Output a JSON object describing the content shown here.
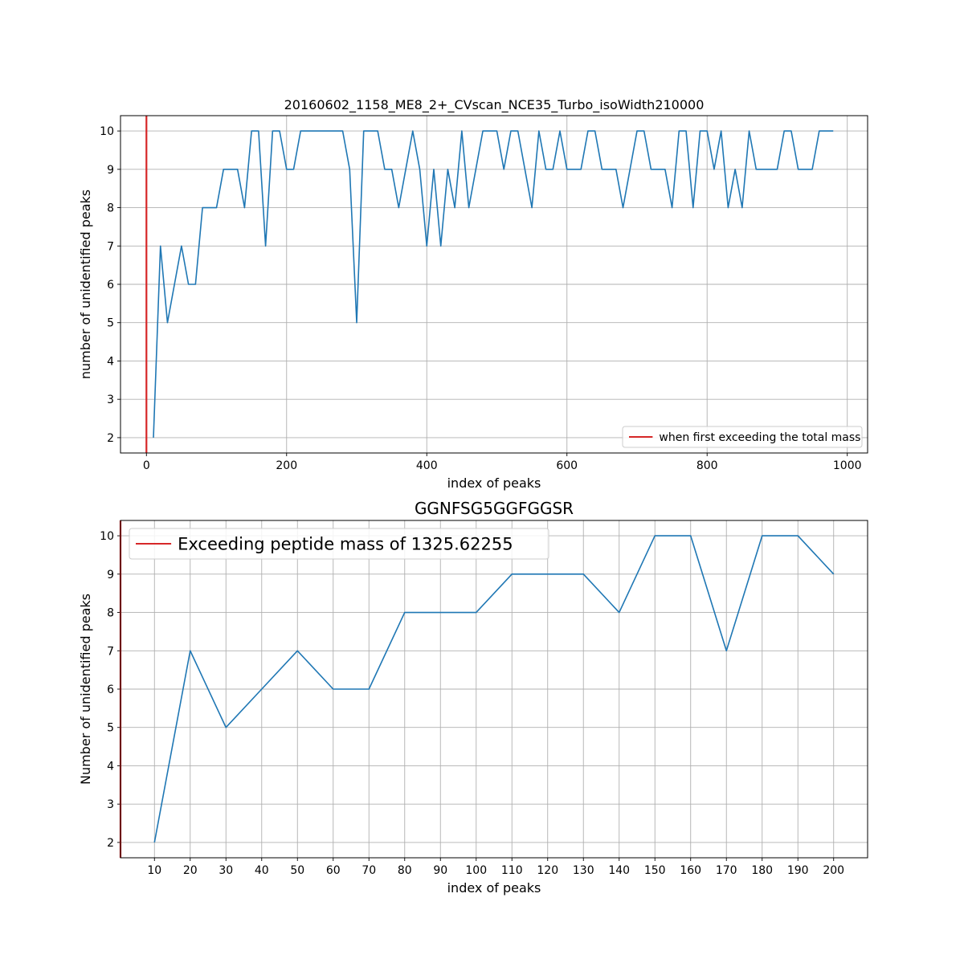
{
  "chart_data": [
    {
      "type": "line",
      "title": "20160602_1158_ME8_2+_CVscan_NCE35_Turbo_isoWidth210000",
      "xlabel": "index of peaks",
      "ylabel": "number of unidentified peaks",
      "xlim": [
        -37,
        1029
      ],
      "ylim": [
        1.6,
        10.4
      ],
      "xticks": [
        0,
        200,
        400,
        600,
        800,
        1000
      ],
      "yticks": [
        2,
        3,
        4,
        5,
        6,
        7,
        8,
        9,
        10
      ],
      "grid": true,
      "legend": {
        "location": "lower right",
        "entries": [
          "when first exceeding the total mass"
        ]
      },
      "vline": {
        "x": 0,
        "color": "#d62728",
        "label": "when first exceeding the total mass"
      },
      "series": [
        {
          "color": "#1f77b4",
          "x": [
            10,
            20,
            30,
            40,
            50,
            60,
            70,
            80,
            90,
            100,
            110,
            120,
            130,
            140,
            150,
            160,
            170,
            180,
            190,
            200,
            210,
            220,
            230,
            240,
            250,
            260,
            270,
            280,
            290,
            300,
            310,
            320,
            330,
            340,
            350,
            360,
            370,
            380,
            390,
            400,
            410,
            420,
            430,
            440,
            450,
            460,
            470,
            480,
            490,
            500,
            510,
            520,
            530,
            540,
            550,
            560,
            570,
            580,
            590,
            600,
            610,
            620,
            630,
            640,
            650,
            660,
            670,
            680,
            690,
            700,
            710,
            720,
            730,
            740,
            750,
            760,
            770,
            780,
            790,
            800,
            810,
            820,
            830,
            840,
            850,
            860,
            870,
            880,
            890,
            900,
            910,
            920,
            930,
            940,
            950,
            960,
            970,
            980
          ],
          "y": [
            2,
            7,
            5,
            6,
            7,
            6,
            6,
            8,
            8,
            8,
            9,
            9,
            9,
            8,
            10,
            10,
            7,
            10,
            10,
            9,
            9,
            10,
            10,
            10,
            10,
            10,
            10,
            10,
            9,
            5,
            10,
            10,
            10,
            9,
            9,
            8,
            9,
            10,
            9,
            7,
            9,
            7,
            9,
            8,
            10,
            8,
            9,
            10,
            10,
            10,
            9,
            10,
            10,
            9,
            8,
            10,
            9,
            9,
            10,
            9,
            9,
            9,
            10,
            10,
            9,
            9,
            9,
            8,
            9,
            10,
            10,
            9,
            9,
            9,
            8,
            10,
            10,
            8,
            10,
            10,
            9,
            10,
            8,
            9,
            8,
            10,
            9,
            9,
            9,
            9,
            10,
            10,
            9,
            9,
            9,
            10,
            10,
            10
          ]
        }
      ]
    },
    {
      "type": "line",
      "title": "GGNFSG5GGFGGSR",
      "xlabel": "index of peaks",
      "ylabel": "Number of unidentified peaks",
      "xlim": [
        0.5,
        209.5
      ],
      "ylim": [
        1.6,
        10.4
      ],
      "xticks": [
        10,
        20,
        30,
        40,
        50,
        60,
        70,
        80,
        90,
        100,
        110,
        120,
        130,
        140,
        150,
        160,
        170,
        180,
        190,
        200
      ],
      "yticks": [
        2,
        3,
        4,
        5,
        6,
        7,
        8,
        9,
        10
      ],
      "grid": true,
      "legend": {
        "location": "upper left",
        "entries": [
          "Exceeding peptide mass of 1325.62255"
        ]
      },
      "vline": {
        "x": 0.5,
        "color": "#d62728",
        "label": "Exceeding peptide mass of 1325.62255"
      },
      "series": [
        {
          "color": "#1f77b4",
          "x": [
            10,
            20,
            30,
            40,
            50,
            60,
            70,
            80,
            90,
            100,
            110,
            120,
            130,
            140,
            150,
            160,
            170,
            180,
            190,
            200
          ],
          "y": [
            2,
            7,
            5,
            6,
            7,
            6,
            6,
            8,
            8,
            8,
            9,
            9,
            9,
            8,
            10,
            10,
            7,
            10,
            10,
            9
          ]
        }
      ]
    }
  ]
}
